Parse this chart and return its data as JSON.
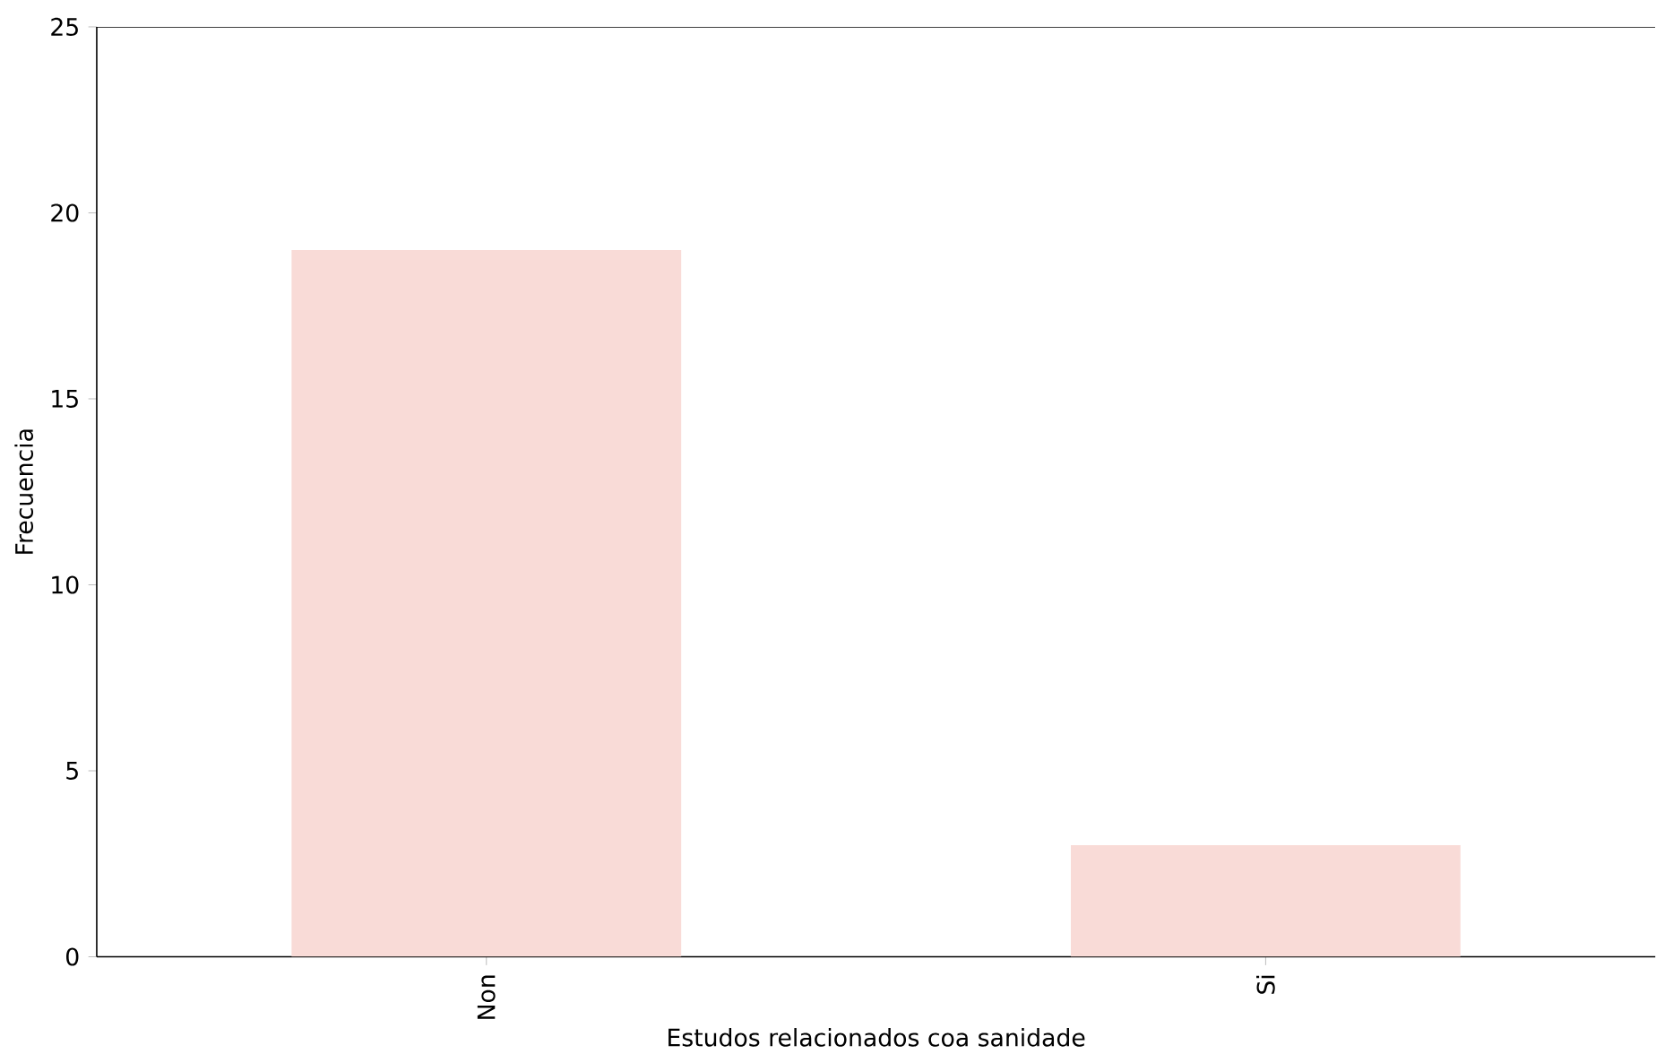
{
  "chart_data": {
    "type": "bar",
    "xlabel": "Estudos relacionados coa sanidade",
    "ylabel": "Frecuencia",
    "categories": [
      "Non",
      "Si"
    ],
    "values": [
      19,
      3
    ],
    "color": "#f9dbd7",
    "ylim": [
      0,
      25
    ],
    "yticks": [
      0,
      5,
      10,
      15,
      20,
      25
    ],
    "grid": false
  }
}
